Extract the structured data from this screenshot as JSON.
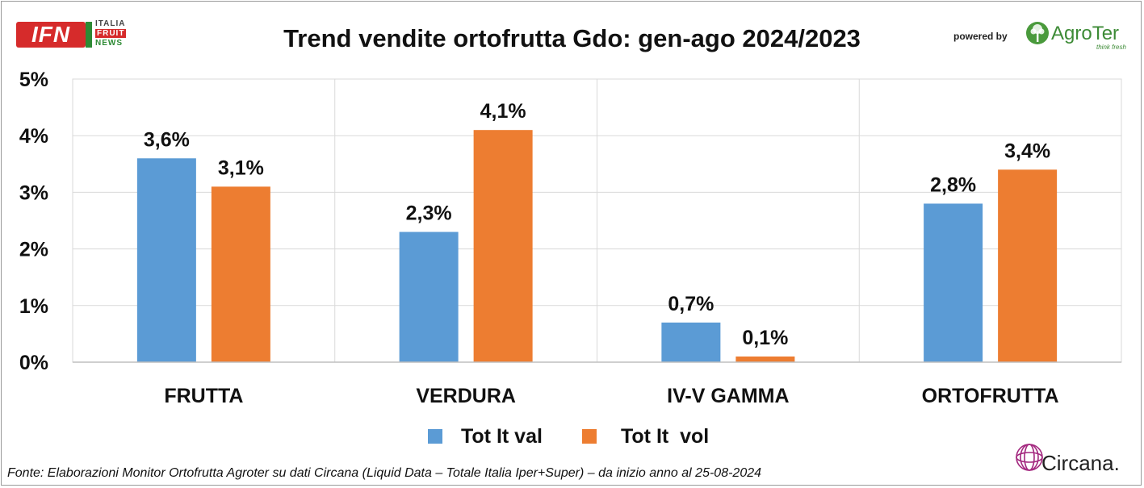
{
  "header": {
    "ifn_logo": {
      "main": "IFN",
      "line1": "ITALIA",
      "line2": "FRUIT",
      "line3": "NEWS"
    },
    "powered_by": "powered by",
    "agroter_logo": {
      "name": "AgroTer",
      "tagline": "think fresh",
      "icon": "tree-icon"
    }
  },
  "colors": {
    "val": "#5b9bd5",
    "vol": "#ed7d31",
    "grid": "#d9d9d9"
  },
  "chart_data": {
    "type": "bar",
    "title": "Trend vendite ortofrutta Gdo: gen-ago 2024/2023",
    "categories": [
      "FRUTTA",
      "VERDURA",
      "IV-V GAMMA",
      "ORTOFRUTTA"
    ],
    "series": [
      {
        "name": "Tot It val",
        "values": [
          3.6,
          2.3,
          0.7,
          2.8
        ],
        "labels": [
          "3,6%",
          "2,3%",
          "0,7%",
          "2,8%"
        ]
      },
      {
        "name": "Tot It  vol",
        "values": [
          3.1,
          4.1,
          0.1,
          3.4
        ],
        "labels": [
          "3,1%",
          "4,1%",
          "0,1%",
          "3,4%"
        ]
      }
    ],
    "ylim": [
      0,
      5
    ],
    "yticks": [
      0,
      1,
      2,
      3,
      4,
      5
    ],
    "ytick_labels": [
      "0%",
      "1%",
      "2%",
      "3%",
      "4%",
      "5%"
    ],
    "grid": true,
    "legend_position": "bottom"
  },
  "footer": {
    "source": "Fonte: Elaborazioni Monitor Ortofrutta Agroter su dati Circana (Liquid Data – Totale Italia Iper+Super) –  da inizio anno al 25-08-2024",
    "circana_logo": {
      "name": "Circana.",
      "icon": "circana-sphere-icon"
    }
  }
}
